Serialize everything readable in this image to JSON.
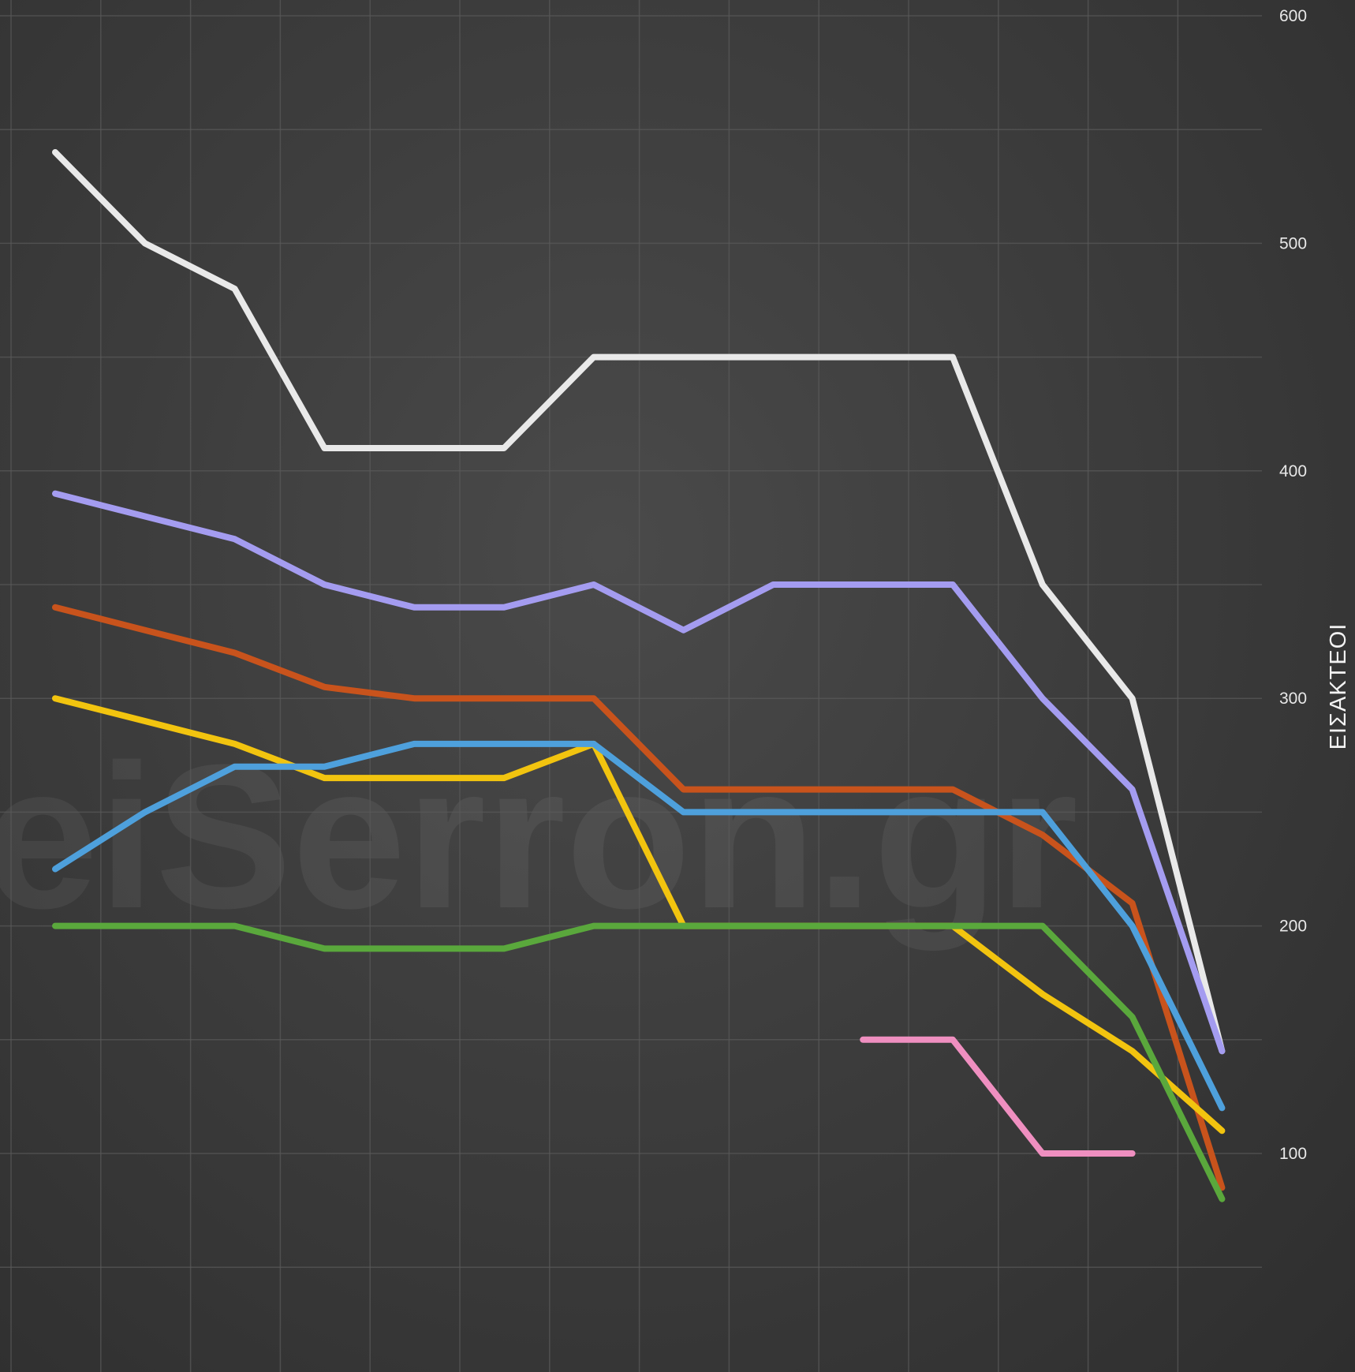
{
  "watermark": "eiSerron.gr",
  "colors": {
    "background": "#3a3a3a",
    "grid": "#5a5a5a",
    "white": "#e9e9e9",
    "purple": "#a49cf0",
    "orange": "#c8531c",
    "yellow": "#f2c40f",
    "blue": "#4ea0dc",
    "green": "#5aa83c",
    "pink": "#ef8fc0"
  },
  "chart_data": {
    "type": "line",
    "ylabel": "ΕΙΣΑΚΤΕΟΙ",
    "xlabel": "",
    "title": "",
    "ylim": [
      0,
      600
    ],
    "yticks": [
      100,
      200,
      300,
      400,
      500,
      600
    ],
    "x": [
      1,
      2,
      3,
      4,
      5,
      6,
      7,
      8,
      9,
      10,
      11,
      12,
      13,
      14
    ],
    "grid": true,
    "series": [
      {
        "color": "#e9e9e9",
        "values": [
          540,
          500,
          480,
          410,
          410,
          410,
          450,
          450,
          450,
          450,
          450,
          350,
          300,
          145
        ]
      },
      {
        "color": "#a49cf0",
        "values": [
          390,
          380,
          370,
          350,
          340,
          340,
          350,
          330,
          350,
          350,
          350,
          300,
          260,
          145
        ]
      },
      {
        "color": "#c8531c",
        "values": [
          340,
          330,
          320,
          305,
          300,
          300,
          300,
          260,
          260,
          260,
          260,
          240,
          210,
          85
        ]
      },
      {
        "color": "#f2c40f",
        "values": [
          300,
          290,
          280,
          265,
          265,
          265,
          280,
          200,
          200,
          200,
          200,
          170,
          145,
          110
        ]
      },
      {
        "color": "#4ea0dc",
        "values": [
          225,
          250,
          270,
          270,
          280,
          280,
          280,
          250,
          250,
          250,
          250,
          250,
          200,
          120
        ]
      },
      {
        "color": "#5aa83c",
        "values": [
          200,
          200,
          200,
          190,
          190,
          190,
          200,
          200,
          200,
          200,
          200,
          200,
          160,
          80
        ]
      },
      {
        "color": "#ef8fc0",
        "values": [
          null,
          null,
          null,
          null,
          null,
          null,
          null,
          null,
          null,
          150,
          150,
          100,
          100,
          null
        ]
      }
    ]
  }
}
